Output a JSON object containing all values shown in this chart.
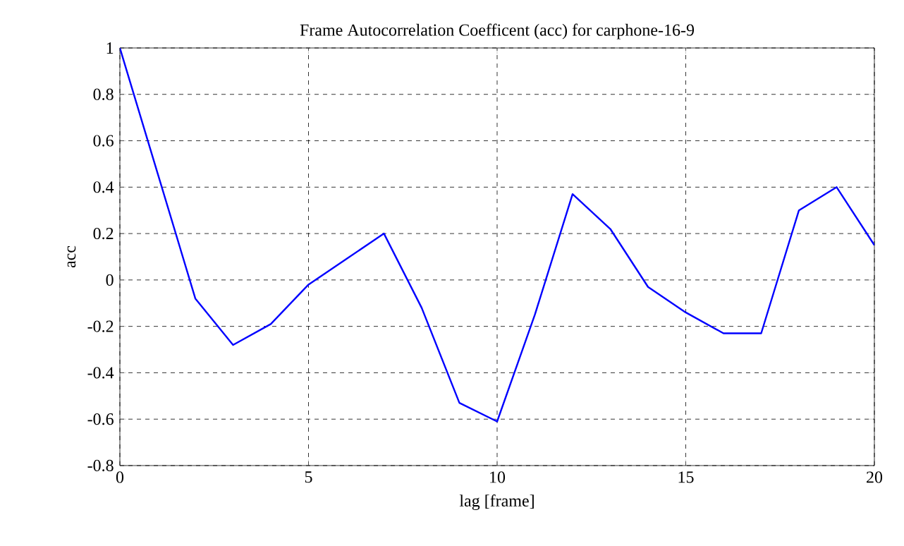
{
  "chart_data": {
    "type": "line",
    "title": "Frame Autocorrelation Coefficent (acc) for carphone-16-9",
    "xlabel": "lag [frame]",
    "ylabel": "acc",
    "x": [
      0,
      1,
      2,
      3,
      4,
      5,
      6,
      7,
      8,
      9,
      10,
      11,
      12,
      13,
      14,
      15,
      16,
      17,
      18,
      19,
      20
    ],
    "series": [
      {
        "color": "#0000ff",
        "values": [
          1.0,
          0.46,
          -0.08,
          -0.28,
          -0.19,
          -0.02,
          0.09,
          0.2,
          -0.12,
          -0.53,
          -0.61,
          -0.15,
          0.37,
          0.22,
          -0.03,
          -0.14,
          -0.23,
          -0.23,
          0.3,
          0.4,
          0.15
        ]
      }
    ],
    "xlim": [
      0,
      20
    ],
    "ylim": [
      -0.8,
      1
    ],
    "xticks": [
      0,
      5,
      10,
      15,
      20
    ],
    "yticks": [
      -0.8,
      -0.6,
      -0.4,
      -0.2,
      0,
      0.2,
      0.4,
      0.6,
      0.8,
      1
    ],
    "grid": true,
    "line_style": "solid",
    "marker": "none"
  }
}
